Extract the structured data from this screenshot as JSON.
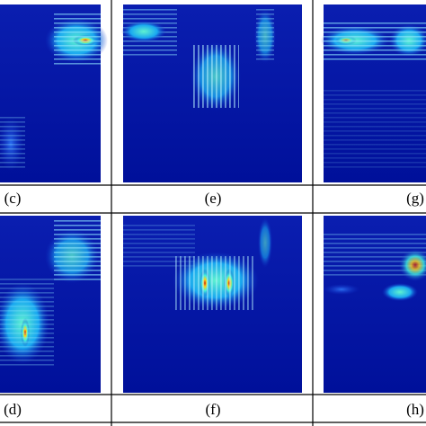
{
  "panels": [
    {
      "label": "(c)"
    },
    {
      "label": "(e)"
    },
    {
      "label": "(g)"
    },
    {
      "label": "(d)"
    },
    {
      "label": "(f)"
    },
    {
      "label": "(h)"
    }
  ]
}
